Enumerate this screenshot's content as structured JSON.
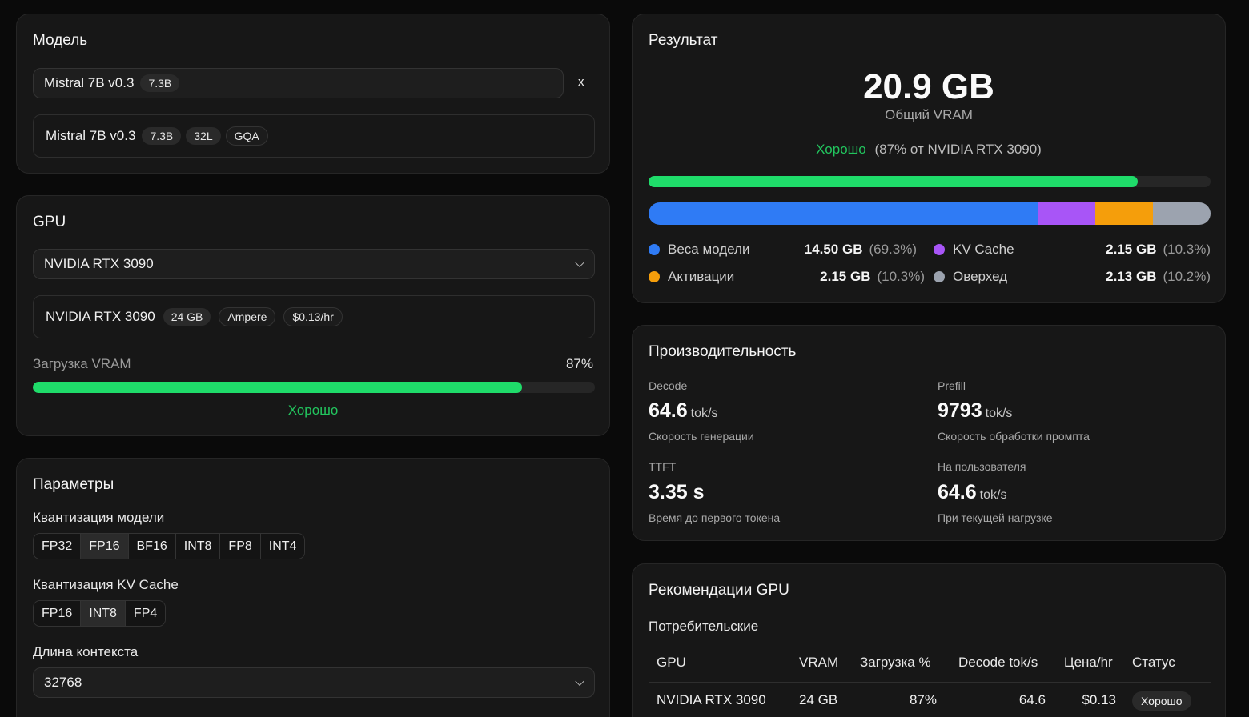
{
  "model": {
    "title": "Модель",
    "selected_name": "Mistral 7B v0.3",
    "selected_badge": "7.3B",
    "clear_label": "x",
    "info_name": "Mistral 7B v0.3",
    "info_badges": [
      "7.3B",
      "32L",
      "GQA"
    ]
  },
  "gpu": {
    "title": "GPU",
    "selected": "NVIDIA RTX 3090",
    "info_name": "NVIDIA RTX 3090",
    "info_badges": [
      "24 GB",
      "Ampere",
      "$0.13/hr"
    ],
    "vram_label": "Загрузка VRAM",
    "vram_percent_text": "87%",
    "vram_fraction": 0.87,
    "status": "Хорошо"
  },
  "params": {
    "title": "Параметры",
    "model_quant_label": "Квантизация модели",
    "model_quant_options": [
      "FP32",
      "FP16",
      "BF16",
      "INT8",
      "FP8",
      "INT4"
    ],
    "model_quant_selected": "FP16",
    "kv_quant_label": "Квантизация KV Cache",
    "kv_quant_options": [
      "FP16",
      "INT8",
      "FP4"
    ],
    "kv_quant_selected": "INT8",
    "context_label": "Длина контекста",
    "context_value": "32768"
  },
  "result": {
    "title": "Результат",
    "total": "20.9 GB",
    "total_label": "Общий VRAM",
    "status": "Хорошо",
    "status_detail": "(87% от NVIDIA RTX 3090)",
    "usage_fraction": 0.87,
    "breakdown": [
      {
        "name": "Веса модели",
        "value": "14.50 GB",
        "pct": "(69.3%)",
        "fraction": 0.693,
        "color": "#2f7bf5"
      },
      {
        "name": "KV Cache",
        "value": "2.15 GB",
        "pct": "(10.3%)",
        "fraction": 0.103,
        "color": "#a855f7"
      },
      {
        "name": "Активации",
        "value": "2.15 GB",
        "pct": "(10.3%)",
        "fraction": 0.103,
        "color": "#f59e0b"
      },
      {
        "name": "Оверхед",
        "value": "2.13 GB",
        "pct": "(10.2%)",
        "fraction": 0.102,
        "color": "#9ca3af"
      }
    ]
  },
  "performance": {
    "title": "Производительность",
    "metrics": [
      {
        "caption": "Decode",
        "value": "64.6",
        "unit": "tok/s",
        "desc": "Скорость генерации"
      },
      {
        "caption": "Prefill",
        "value": "9793",
        "unit": "tok/s",
        "desc": "Скорость обработки промпта"
      },
      {
        "caption": "TTFT",
        "value": "3.35 s",
        "unit": "",
        "desc": "Время до первого токена"
      },
      {
        "caption": "На пользователя",
        "value": "64.6",
        "unit": "tok/s",
        "desc": "При текущей нагрузке"
      }
    ]
  },
  "recommendations": {
    "title": "Рекомендации GPU",
    "section": "Потребительские",
    "columns": [
      "GPU",
      "VRAM",
      "Загрузка %",
      "Decode tok/s",
      "Цена/hr",
      "Статус"
    ],
    "rows": [
      {
        "gpu": "NVIDIA RTX 3090",
        "vram": "24 GB",
        "load": "87%",
        "decode": "64.6",
        "price": "$0.13",
        "status": "Хорошо"
      }
    ]
  }
}
